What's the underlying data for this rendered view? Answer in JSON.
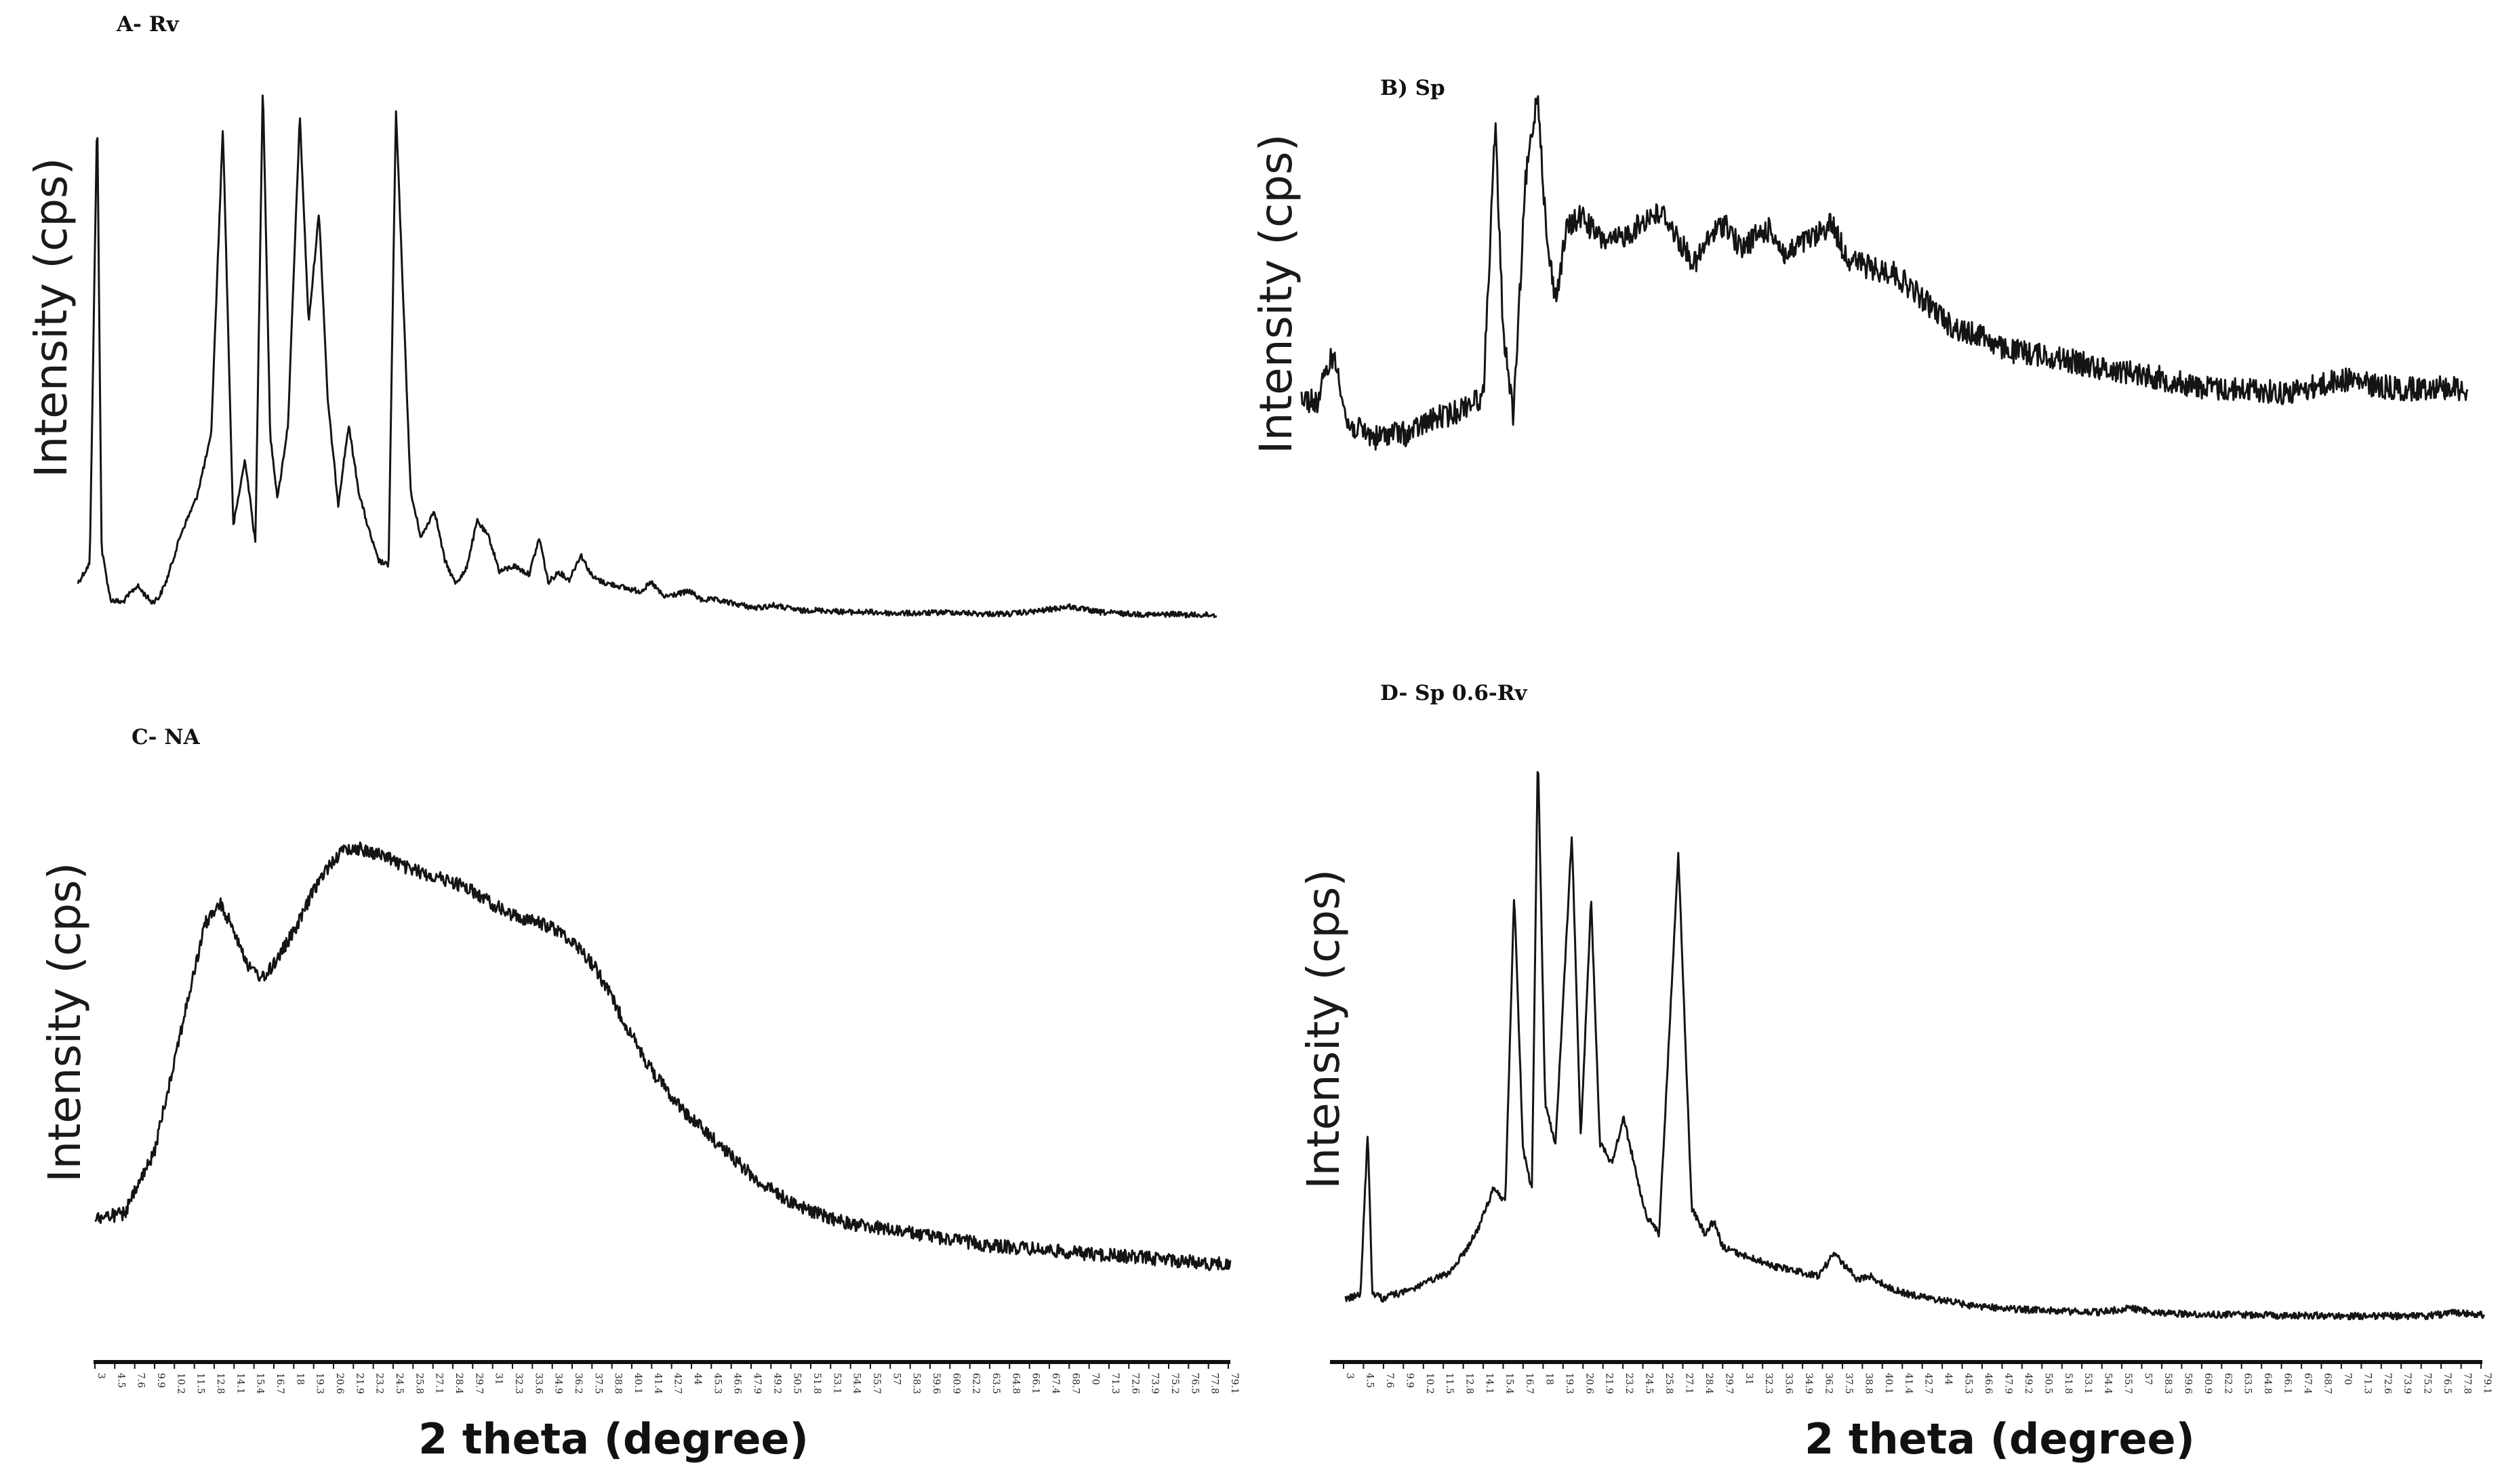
{
  "chart_data": [
    {
      "type": "line",
      "title": "A- Rv",
      "ylabel": "Intensity (cps)",
      "xlabel": "2 theta (degree)",
      "x_range": [
        3,
        80
      ],
      "grid": false,
      "series": [
        {
          "x": [
            3,
            3.8,
            4.3,
            4.6,
            5.2,
            6,
            7,
            8,
            8.5,
            9,
            10,
            11,
            12,
            12.8,
            13.5,
            14.3,
            15,
            15.5,
            16,
            16.5,
            17.2,
            18,
            18.6,
            19.3,
            19.9,
            20.6,
            21.3,
            22,
            22.6,
            23.3,
            24,
            24.5,
            25.5,
            26.2,
            27.1,
            27.8,
            28.5,
            29.2,
            30,
            30.8,
            31.5,
            32.5,
            33.5,
            34.2,
            34.8,
            35.5,
            36.2,
            37,
            37.8,
            38.6,
            39.5,
            40.1,
            41,
            41.8,
            42.6,
            43.5,
            44.4,
            45.1,
            46,
            47,
            48,
            48.8,
            50,
            51,
            52,
            52.5,
            54,
            55,
            56.5,
            58,
            60,
            62,
            64,
            66,
            68,
            70,
            72,
            74,
            75.3,
            76,
            77,
            78,
            79,
            80
          ],
          "y": [
            60,
            95,
            900,
            120,
            30,
            25,
            55,
            25,
            35,
            65,
            150,
            210,
            320,
            870,
            160,
            280,
            130,
            950,
            320,
            210,
            340,
            890,
            520,
            720,
            380,
            200,
            340,
            220,
            160,
            100,
            90,
            900,
            220,
            140,
            190,
            100,
            60,
            80,
            170,
            140,
            80,
            90,
            75,
            140,
            60,
            80,
            65,
            110,
            70,
            60,
            55,
            50,
            45,
            60,
            35,
            40,
            45,
            30,
            30,
            25,
            20,
            15,
            20,
            15,
            10,
            12,
            10,
            8,
            8,
            6,
            6,
            8,
            5,
            5,
            10,
            18,
            8,
            5,
            4,
            3,
            5,
            3,
            3,
            3
          ]
        }
      ]
    },
    {
      "type": "line",
      "title": "B) Sp",
      "ylabel": "Intensity (cps)",
      "xlabel": "",
      "x_range": [
        3,
        80
      ],
      "grid": false,
      "series": [
        {
          "x": [
            3,
            4,
            5,
            5.5,
            6,
            7,
            8,
            9,
            10,
            11,
            12,
            13,
            14,
            15,
            15.8,
            16.3,
            17,
            17.8,
            18.6,
            19.2,
            19.8,
            20.5,
            21.5,
            22.5,
            23.5,
            25,
            26,
            27,
            28,
            29,
            30,
            31,
            32,
            33,
            34,
            35,
            36,
            37,
            38,
            39,
            40,
            41,
            42,
            43,
            44,
            45,
            46,
            47,
            48,
            49,
            50,
            52,
            54,
            56,
            58,
            60,
            62,
            64,
            66,
            68,
            70,
            72,
            74,
            76,
            78,
            80
          ],
          "y": [
            160,
            150,
            220,
            190,
            120,
            110,
            100,
            110,
            105,
            120,
            130,
            135,
            150,
            160,
            550,
            260,
            130,
            470,
            600,
            380,
            300,
            400,
            420,
            390,
            380,
            400,
            420,
            420,
            380,
            350,
            390,
            410,
            370,
            390,
            400,
            360,
            380,
            390,
            410,
            360,
            350,
            340,
            340,
            320,
            300,
            280,
            260,
            250,
            250,
            230,
            225,
            220,
            210,
            200,
            195,
            185,
            175,
            170,
            170,
            165,
            175,
            185,
            175,
            170,
            175,
            170
          ]
        }
      ]
    },
    {
      "type": "line",
      "title": "C- NA",
      "ylabel": "Intensity (cps)",
      "xlabel": "2 theta (degree)",
      "x_range": [
        3,
        80
      ],
      "grid": false,
      "series": [
        {
          "x": [
            3,
            5,
            7,
            8.5,
            9.5,
            10.5,
            11.5,
            12.5,
            13.5,
            14.5,
            15.5,
            16.5,
            18,
            19,
            20,
            21,
            22,
            23,
            24,
            25,
            26,
            27,
            28,
            29,
            30,
            31,
            32,
            33,
            34,
            35,
            36,
            37,
            38,
            39,
            40,
            41,
            42,
            43,
            44,
            45,
            46,
            47,
            48,
            49,
            50,
            51,
            52,
            54,
            56,
            58,
            60,
            62,
            64,
            66,
            68,
            70,
            72,
            74,
            76,
            78,
            80
          ],
          "y": [
            60,
            65,
            130,
            240,
            310,
            380,
            400,
            370,
            330,
            320,
            345,
            370,
            420,
            445,
            460,
            460,
            455,
            450,
            440,
            435,
            430,
            425,
            420,
            410,
            400,
            390,
            385,
            380,
            375,
            365,
            350,
            330,
            300,
            270,
            240,
            215,
            195,
            175,
            160,
            145,
            130,
            115,
            100,
            90,
            80,
            72,
            65,
            55,
            50,
            45,
            40,
            35,
            30,
            28,
            25,
            22,
            20,
            18,
            15,
            12,
            10
          ]
        }
      ]
    },
    {
      "type": "line",
      "title": "D- Sp 0.6-Rv",
      "ylabel": "Intensity (cps)",
      "xlabel": "2 theta (degree)",
      "x_range": [
        3,
        80
      ],
      "grid": false,
      "series": [
        {
          "x": [
            3,
            4,
            4.5,
            4.8,
            5.5,
            6,
            7,
            8,
            9,
            10,
            11,
            12,
            13,
            13.8,
            14.4,
            15,
            15.6,
            16,
            16.5,
            17.2,
            18.3,
            18.9,
            19.6,
            20.2,
            21,
            21.8,
            22.6,
            23.3,
            24.2,
            25.5,
            26.4,
            27.3,
            27.9,
            28.5,
            29.5,
            30.8,
            32,
            33,
            34,
            35,
            36,
            36.8,
            37.6,
            38.5,
            39.5,
            40.5,
            41.5,
            42.5,
            43.2,
            44,
            45,
            46,
            47,
            48,
            50,
            52,
            54,
            56,
            58,
            60,
            62,
            64,
            66,
            68,
            70,
            72,
            74,
            76,
            78,
            80
          ],
          "y": [
            30,
            35,
            290,
            40,
            30,
            35,
            40,
            50,
            60,
            70,
            100,
            140,
            200,
            180,
            660,
            260,
            200,
            880,
            330,
            270,
            750,
            280,
            650,
            270,
            240,
            310,
            230,
            160,
            130,
            720,
            170,
            130,
            150,
            110,
            100,
            90,
            80,
            75,
            70,
            65,
            100,
            80,
            60,
            65,
            50,
            40,
            35,
            30,
            28,
            25,
            20,
            18,
            16,
            14,
            12,
            10,
            9,
            15,
            8,
            6,
            5,
            5,
            4,
            4,
            3,
            3,
            3,
            3,
            8,
            5
          ]
        }
      ]
    }
  ],
  "ticks": [
    "3",
    "4.5",
    "7.6",
    "9.9",
    "10.2",
    "11.5",
    "12.8",
    "14.1",
    "15.4",
    "16.7",
    "18",
    "19.3",
    "20.6",
    "21.9",
    "23.2",
    "24.5",
    "25.8",
    "27.1",
    "28.4",
    "29.7",
    "31",
    "32.3",
    "33.6",
    "34.9",
    "36.2",
    "37.5",
    "38.8",
    "40.1",
    "41.4",
    "42.7",
    "44",
    "45.3",
    "46.6",
    "47.9",
    "49.2",
    "50.5",
    "51.8",
    "53.1",
    "54.4",
    "55.7",
    "57",
    "58.3",
    "59.6",
    "60.9",
    "62.2",
    "63.5",
    "64.8",
    "66.1",
    "67.4",
    "68.7",
    "70",
    "71.3",
    "72.6",
    "73.9",
    "75.2",
    "76.5",
    "77.8",
    "79.1"
  ]
}
